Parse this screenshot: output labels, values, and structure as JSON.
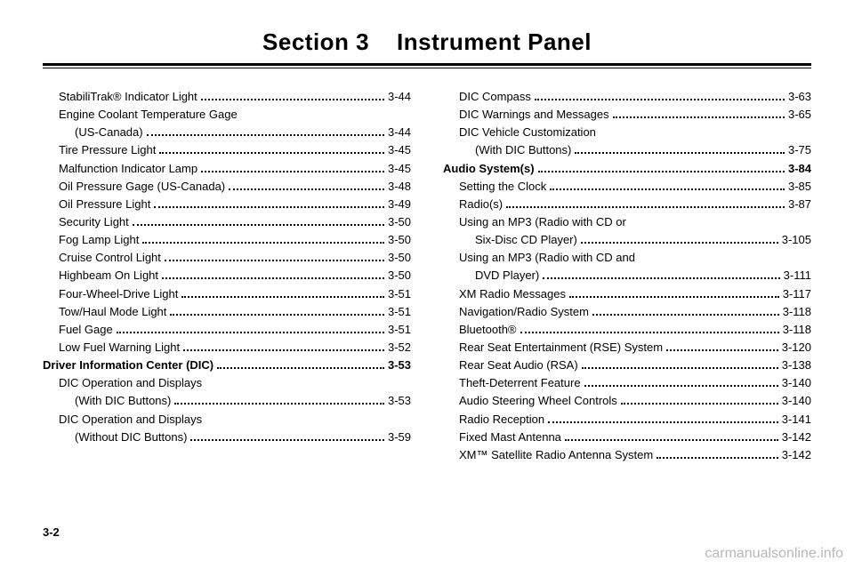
{
  "header": {
    "section_label": "Section 3",
    "section_title": "Instrument Panel"
  },
  "left_column": [
    {
      "label": "StabiliTrak® Indicator Light",
      "page": "3-44",
      "indent": 1
    },
    {
      "label": "Engine Coolant Temperature Gage",
      "cont": "(US-Canada)",
      "page": "3-44",
      "indent": 1
    },
    {
      "label": "Tire Pressure Light",
      "page": "3-45",
      "indent": 1
    },
    {
      "label": "Malfunction Indicator Lamp",
      "page": "3-45",
      "indent": 1
    },
    {
      "label": "Oil Pressure Gage (US-Canada)",
      "page": "3-48",
      "indent": 1
    },
    {
      "label": "Oil Pressure Light",
      "page": "3-49",
      "indent": 1
    },
    {
      "label": "Security Light",
      "page": "3-50",
      "indent": 1
    },
    {
      "label": "Fog Lamp Light",
      "page": "3-50",
      "indent": 1
    },
    {
      "label": "Cruise Control Light",
      "page": "3-50",
      "indent": 1
    },
    {
      "label": "Highbeam On Light",
      "page": "3-50",
      "indent": 1
    },
    {
      "label": "Four-Wheel-Drive Light",
      "page": "3-51",
      "indent": 1
    },
    {
      "label": "Tow/Haul Mode Light",
      "page": "3-51",
      "indent": 1
    },
    {
      "label": "Fuel Gage",
      "page": "3-51",
      "indent": 1
    },
    {
      "label": "Low Fuel Warning Light",
      "page": "3-52",
      "indent": 1
    },
    {
      "label": "Driver Information Center (DIC)",
      "page": "3-53",
      "indent": 0,
      "bold": true
    },
    {
      "label": "DIC Operation and Displays",
      "cont": "(With DIC Buttons)",
      "page": "3-53",
      "indent": 1
    },
    {
      "label": "DIC Operation and Displays",
      "cont": "(Without DIC Buttons)",
      "page": "3-59",
      "indent": 1
    }
  ],
  "right_column": [
    {
      "label": "DIC Compass",
      "page": "3-63",
      "indent": 1
    },
    {
      "label": "DIC Warnings and Messages",
      "page": "3-65",
      "indent": 1
    },
    {
      "label": "DIC Vehicle Customization",
      "cont": "(With DIC Buttons)",
      "page": "3-75",
      "indent": 1
    },
    {
      "label": "Audio System(s)",
      "page": "3-84",
      "indent": 0,
      "bold": true
    },
    {
      "label": "Setting the Clock",
      "page": "3-85",
      "indent": 1
    },
    {
      "label": "Radio(s)",
      "page": "3-87",
      "indent": 1
    },
    {
      "label": "Using an MP3 (Radio with CD or",
      "cont": "Six-Disc CD Player)",
      "page": "3-105",
      "indent": 1
    },
    {
      "label": "Using an MP3 (Radio with CD and",
      "cont": "DVD Player)",
      "page": "3-111",
      "indent": 1
    },
    {
      "label": "XM Radio Messages",
      "page": "3-117",
      "indent": 1
    },
    {
      "label": "Navigation/Radio System",
      "page": "3-118",
      "indent": 1
    },
    {
      "label": "Bluetooth®",
      "page": "3-118",
      "indent": 1
    },
    {
      "label": "Rear Seat Entertainment (RSE) System",
      "page": "3-120",
      "indent": 1
    },
    {
      "label": "Rear Seat Audio (RSA)",
      "page": "3-138",
      "indent": 1
    },
    {
      "label": "Theft-Deterrent Feature",
      "page": "3-140",
      "indent": 1
    },
    {
      "label": "Audio Steering Wheel Controls",
      "page": "3-140",
      "indent": 1
    },
    {
      "label": "Radio Reception",
      "page": "3-141",
      "indent": 1
    },
    {
      "label": "Fixed Mast Antenna",
      "page": "3-142",
      "indent": 1
    },
    {
      "label": "XM™ Satellite Radio Antenna System",
      "page": "3-142",
      "indent": 1
    }
  ],
  "footer": {
    "page_number": "3-2",
    "watermark": "carmanualsonline.info"
  }
}
